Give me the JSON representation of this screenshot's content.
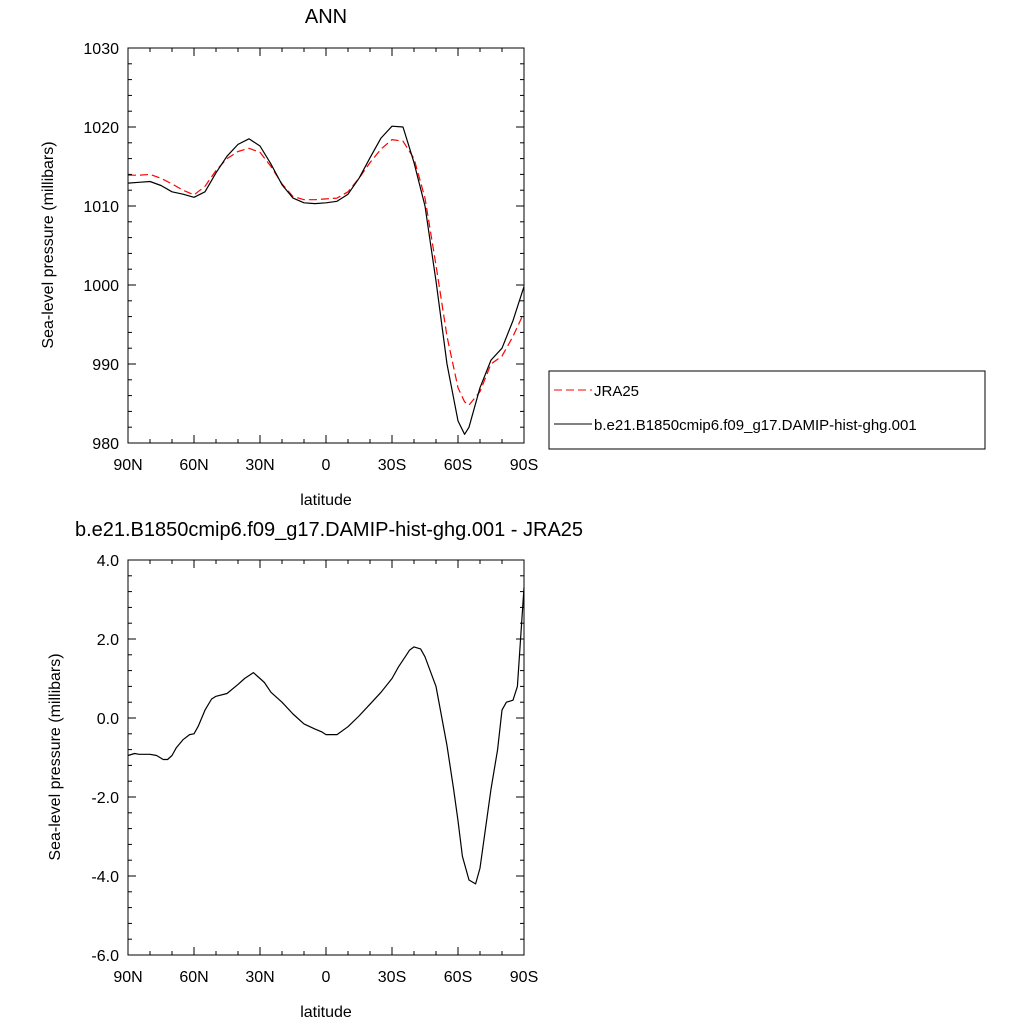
{
  "chart_data": [
    {
      "type": "line",
      "title": "ANN",
      "xlabel": "latitude",
      "ylabel": "Sea-level pressure (millibars)",
      "xlim": [
        90,
        -90
      ],
      "ylim": [
        980,
        1030
      ],
      "x_ticks": [
        90,
        60,
        30,
        0,
        -30,
        -60,
        -90
      ],
      "x_tick_labels": [
        "90N",
        "60N",
        "30N",
        "0",
        "30S",
        "60S",
        "90S"
      ],
      "y_ticks": [
        980,
        990,
        1000,
        1010,
        1020,
        1030
      ],
      "y_tick_labels": [
        "980",
        "990",
        "1000",
        "1010",
        "1020",
        "1030"
      ],
      "grid": false,
      "legend_position": "right",
      "series": [
        {
          "name": "JRA25",
          "color": "#ff0000",
          "dash": "dashed",
          "x": [
            90,
            85,
            80,
            75,
            70,
            65,
            60,
            55,
            50,
            45,
            40,
            35,
            30,
            25,
            20,
            15,
            10,
            5,
            0,
            -5,
            -10,
            -15,
            -20,
            -25,
            -30,
            -35,
            -40,
            -45,
            -50,
            -55,
            -60,
            -63,
            -65,
            -70,
            -75,
            -80,
            -85,
            -90
          ],
          "y": [
            1013.9,
            1013.9,
            1014.0,
            1013.5,
            1012.8,
            1012.0,
            1011.4,
            1012.5,
            1014.5,
            1016.0,
            1016.9,
            1017.3,
            1016.8,
            1015.0,
            1012.8,
            1011.2,
            1010.8,
            1010.8,
            1010.9,
            1011.0,
            1011.8,
            1013.5,
            1015.5,
            1017.2,
            1018.4,
            1018.2,
            1016.0,
            1011.0,
            1002.5,
            993.5,
            987.0,
            985.2,
            984.8,
            986.5,
            990.0,
            991.0,
            993.5,
            996.5
          ]
        },
        {
          "name": "b.e21.B1850cmip6.f09_g17.DAMIP-hist-ghg.001",
          "color": "#000000",
          "dash": "solid",
          "x": [
            90,
            85,
            80,
            75,
            70,
            65,
            60,
            55,
            50,
            45,
            40,
            35,
            30,
            25,
            20,
            15,
            10,
            5,
            0,
            -5,
            -10,
            -15,
            -20,
            -25,
            -30,
            -35,
            -40,
            -45,
            -50,
            -55,
            -60,
            -63,
            -65,
            -70,
            -75,
            -80,
            -85,
            -90
          ],
          "y": [
            1012.9,
            1013.0,
            1013.1,
            1012.6,
            1011.8,
            1011.5,
            1011.1,
            1011.8,
            1014.2,
            1016.3,
            1017.8,
            1018.5,
            1017.6,
            1015.3,
            1012.7,
            1011.0,
            1010.4,
            1010.3,
            1010.4,
            1010.6,
            1011.5,
            1013.5,
            1016.1,
            1018.6,
            1020.1,
            1020.0,
            1015.5,
            1010.0,
            1000.5,
            990.0,
            982.8,
            981.1,
            982.0,
            987.0,
            990.5,
            992.0,
            995.5,
            999.8
          ]
        }
      ]
    },
    {
      "type": "line",
      "title": "b.e21.B1850cmip6.f09_g17.DAMIP-hist-ghg.001 - JRA25",
      "xlabel": "latitude",
      "ylabel": "Sea-level pressure (millibars)",
      "xlim": [
        90,
        -90
      ],
      "ylim": [
        -6,
        4
      ],
      "x_ticks": [
        90,
        60,
        30,
        0,
        -30,
        -60,
        -90
      ],
      "x_tick_labels": [
        "90N",
        "60N",
        "30N",
        "0",
        "30S",
        "60S",
        "90S"
      ],
      "y_ticks": [
        -6,
        -4,
        -2,
        0,
        2,
        4
      ],
      "y_tick_labels": [
        "-6.0",
        "-4.0",
        "-2.0",
        "0.0",
        "2.0",
        "4.0"
      ],
      "grid": false,
      "series": [
        {
          "color": "#000000",
          "dash": "solid",
          "x": [
            90,
            87,
            85,
            80,
            77,
            74,
            72,
            70,
            68,
            65,
            62,
            60,
            58,
            55,
            52,
            50,
            45,
            40,
            37,
            33,
            30,
            28,
            25,
            20,
            15,
            10,
            5,
            2,
            0,
            -2,
            -5,
            -10,
            -15,
            -20,
            -25,
            -30,
            -33,
            -36,
            -38,
            -40,
            -43,
            -45,
            -50,
            -55,
            -58,
            -60,
            -62,
            -65,
            -68,
            -70,
            -75,
            -78,
            -80,
            -82,
            -85,
            -87,
            -90
          ],
          "y": [
            -0.95,
            -0.9,
            -0.92,
            -0.92,
            -0.95,
            -1.05,
            -1.05,
            -0.95,
            -0.75,
            -0.55,
            -0.42,
            -0.4,
            -0.2,
            0.2,
            0.48,
            0.55,
            0.62,
            0.85,
            1.0,
            1.15,
            1.0,
            0.9,
            0.65,
            0.4,
            0.1,
            -0.15,
            -0.28,
            -0.35,
            -0.42,
            -0.42,
            -0.42,
            -0.22,
            0.05,
            0.35,
            0.65,
            1.0,
            1.3,
            1.55,
            1.72,
            1.8,
            1.75,
            1.55,
            0.8,
            -0.7,
            -1.8,
            -2.6,
            -3.5,
            -4.1,
            -4.2,
            -3.8,
            -1.8,
            -0.8,
            0.2,
            0.4,
            0.45,
            0.8,
            3.3
          ]
        }
      ]
    }
  ]
}
